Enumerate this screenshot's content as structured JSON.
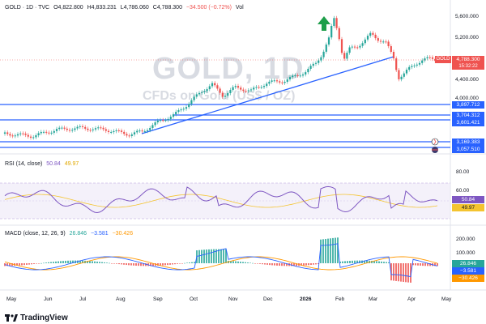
{
  "header": {
    "symbol": "GOLD · 1D · TVC",
    "open": "O4,822.800",
    "high": "H4,833.231",
    "low": "L4,786.060",
    "close": "C4,788.300",
    "change": "−34.500 (−0.72%)",
    "extra": "Vol"
  },
  "watermark": {
    "symbol": "GOLD, 1D",
    "desc": "CFDs on Gold (US$ / OZ)"
  },
  "price_axis": {
    "ticks": [
      "5,600.000",
      "5,200.000",
      "4,400.000",
      "4,000.000"
    ],
    "current_label": "4,788.300",
    "countdown": "15:32:22",
    "symbol_tag": "GOLD",
    "levels": [
      "3,897.712",
      "3,704.312",
      "3,601.421",
      "3,169.383",
      "3,057.510"
    ]
  },
  "rsi": {
    "label": "RSI (14, close)",
    "value": "50.84",
    "ma": "49.97",
    "ticks": [
      "80.00",
      "60.00"
    ],
    "value_tag": "50.84",
    "ma_tag": "49.97"
  },
  "macd": {
    "label": "MACD (close, 12, 26, 9)",
    "hist": "26.846",
    "macd": "−3.581",
    "signal": "−30.426",
    "ticks": [
      "200.000",
      "100.000"
    ],
    "tag_hist": "26.846",
    "tag_macd": "−3.581",
    "tag_signal": "−30.426"
  },
  "time_axis": [
    "May",
    "Jun",
    "Jul",
    "Aug",
    "Sep",
    "Oct",
    "Nov",
    "Dec",
    "2026",
    "Feb",
    "Mar",
    "Apr",
    "May"
  ],
  "brand": {
    "name": "TradingView"
  },
  "colors": {
    "up": "#26a69a",
    "down": "#ef5350",
    "level": "#2962ff",
    "rsi": "#7e57c2",
    "signal": "#ff9800",
    "arrow": "#1e9e4a"
  }
}
